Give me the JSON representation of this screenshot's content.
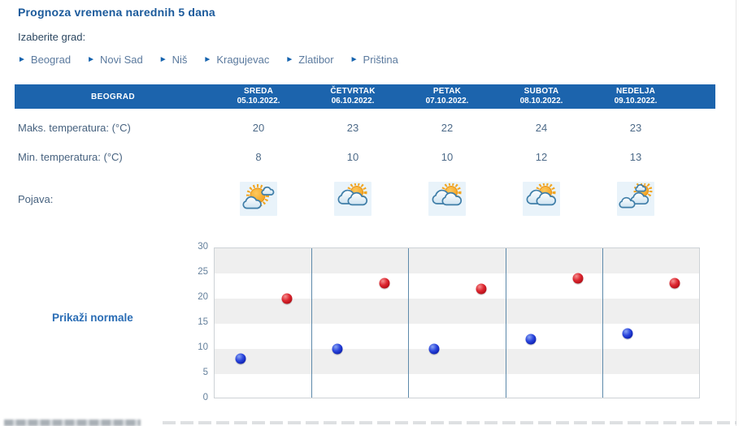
{
  "page": {
    "title": "Prognoza vremena narednih 5 dana",
    "choose_city_label": "Izaberite grad:"
  },
  "cities": [
    {
      "label": "Beograd"
    },
    {
      "label": "Novi Sad"
    },
    {
      "label": "Niš"
    },
    {
      "label": "Kragujevac"
    },
    {
      "label": "Zlatibor"
    },
    {
      "label": "Priština"
    }
  ],
  "table": {
    "city_header": "BEOGRAD",
    "row_labels": {
      "max": "Maks. temperatura: (°C)",
      "min": "Min. temperatura: (°C)",
      "pojava": "Pojava:"
    },
    "days": [
      {
        "name": "SREDA",
        "date": "05.10.2022.",
        "max": "20",
        "min": "8",
        "icon": "sun-with-clouds-icon"
      },
      {
        "name": "ČETVRTAK",
        "date": "06.10.2022.",
        "max": "23",
        "min": "10",
        "icon": "sun-behind-clouds-icon"
      },
      {
        "name": "PETAK",
        "date": "07.10.2022.",
        "max": "22",
        "min": "10",
        "icon": "sun-behind-clouds-icon"
      },
      {
        "name": "SUBOTA",
        "date": "08.10.2022.",
        "max": "24",
        "min": "12",
        "icon": "sun-behind-clouds-icon"
      },
      {
        "name": "NEDELJA",
        "date": "09.10.2022.",
        "max": "23",
        "min": "13",
        "icon": "sun-over-clouds-icon"
      }
    ]
  },
  "chart": {
    "normals_button_label": "Prikaži normale"
  },
  "chart_data": {
    "type": "scatter",
    "categories": [
      "SREDA 05.10.2022.",
      "ČETVRTAK 06.10.2022.",
      "PETAK 07.10.2022.",
      "SUBOTA 08.10.2022.",
      "NEDELJA 09.10.2022."
    ],
    "series": [
      {
        "name": "Min. temperatura (°C)",
        "color": "#1330c4",
        "values": [
          8,
          10,
          10,
          12,
          13
        ]
      },
      {
        "name": "Maks. temperatura (°C)",
        "color": "#cf1020",
        "values": [
          20,
          23,
          22,
          24,
          23
        ]
      }
    ],
    "ylim": [
      0,
      30
    ],
    "yticks": [
      0,
      5,
      10,
      15,
      20,
      25,
      30
    ],
    "grid": "alternating-horizontal-bands",
    "column_separators_percent": [
      20,
      40,
      60,
      80
    ],
    "legend": "none"
  },
  "colors": {
    "header_bar": "#1c64ad",
    "title_text": "#1b5a9b",
    "link_text": "#5b7a9e",
    "link_arrow": "#1563ae",
    "table_text": "#4d6a88",
    "min_dot": "#1330c4",
    "max_dot": "#cf1020",
    "band_gray": "#efefef",
    "separator_blue": "#5d89aa"
  }
}
